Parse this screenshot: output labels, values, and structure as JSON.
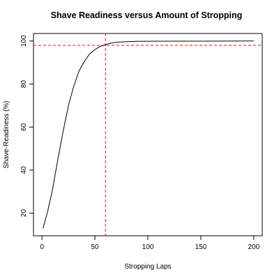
{
  "chart_data": {
    "type": "line",
    "title": "Shave Readiness versus Amount of Stropping",
    "xlabel": "Stropping Laps",
    "ylabel": "Shave-Readiness (%)",
    "xlim": [
      -8,
      208
    ],
    "ylim": [
      9.5,
      103.5
    ],
    "xticks": [
      0,
      50,
      100,
      150,
      200
    ],
    "yticks": [
      20,
      40,
      60,
      80,
      100
    ],
    "grid": false,
    "legend": "none",
    "colors": {
      "curve": "#000000",
      "reference": "#ff0000"
    },
    "series": [
      {
        "values": [
          {
            "x": 1,
            "y": 13
          },
          {
            "x": 5,
            "y": 20
          },
          {
            "x": 10,
            "y": 31
          },
          {
            "x": 15,
            "y": 45
          },
          {
            "x": 20,
            "y": 58
          },
          {
            "x": 25,
            "y": 70
          },
          {
            "x": 30,
            "y": 79
          },
          {
            "x": 35,
            "y": 86
          },
          {
            "x": 40,
            "y": 90.5
          },
          {
            "x": 45,
            "y": 94
          },
          {
            "x": 50,
            "y": 96
          },
          {
            "x": 55,
            "y": 97.5
          },
          {
            "x": 60,
            "y": 98.3
          },
          {
            "x": 65,
            "y": 99
          },
          {
            "x": 70,
            "y": 99.4
          },
          {
            "x": 80,
            "y": 99.7
          },
          {
            "x": 90,
            "y": 99.85
          },
          {
            "x": 100,
            "y": 99.9
          },
          {
            "x": 150,
            "y": 99.95
          },
          {
            "x": 200,
            "y": 100
          }
        ]
      }
    ],
    "reference_lines": {
      "vertical_x": 60,
      "horizontal_y": 98
    }
  }
}
